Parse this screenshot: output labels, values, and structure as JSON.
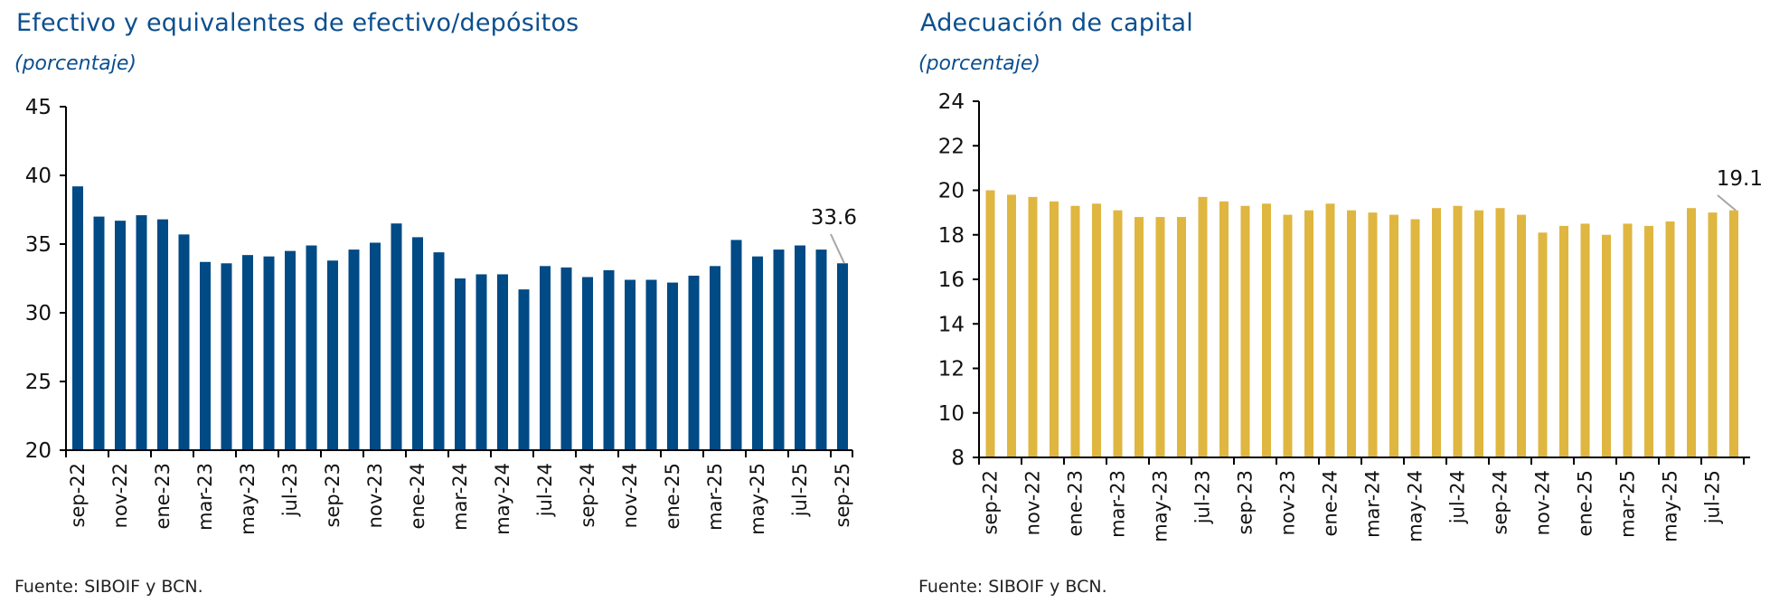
{
  "charts": [
    {
      "title": "Efectivo y equivalentes de efectivo/depósitos",
      "subtitle": "(porcentaje)",
      "source": "Fuente: SIBOIF y BCN."
    },
    {
      "title": "Adecuación de capital",
      "subtitle": "(porcentaje)",
      "source": "Fuente: SIBOIF y BCN."
    }
  ],
  "chart_data": [
    {
      "type": "bar",
      "title": "Efectivo y equivalentes de efectivo/depósitos",
      "subtitle": "(porcentaje)",
      "xlabel": "",
      "ylabel": "",
      "ylim": [
        20,
        45
      ],
      "yticks": [
        20,
        25,
        30,
        35,
        40,
        45
      ],
      "grid": false,
      "color": "#004a85",
      "categories": [
        "sep-22",
        "oct-22",
        "nov-22",
        "dic-22",
        "ene-23",
        "feb-23",
        "mar-23",
        "abr-23",
        "may-23",
        "jun-23",
        "jul-23",
        "ago-23",
        "sep-23",
        "oct-23",
        "nov-23",
        "dic-23",
        "ene-24",
        "feb-24",
        "mar-24",
        "abr-24",
        "may-24",
        "jun-24",
        "jul-24",
        "ago-24",
        "sep-24",
        "oct-24",
        "nov-24",
        "dic-24",
        "ene-25",
        "feb-25",
        "mar-25",
        "abr-25",
        "may-25",
        "jun-25",
        "jul-25",
        "ago-25",
        "sep-25"
      ],
      "tick_labels": [
        "sep-22",
        "nov-22",
        "ene-23",
        "mar-23",
        "may-23",
        "jul-23",
        "sep-23",
        "nov-23",
        "ene-24",
        "mar-24",
        "may-24",
        "jul-24",
        "sep-24",
        "nov-24",
        "ene-25",
        "mar-25",
        "may-25",
        "jul-25",
        "sep-25"
      ],
      "values": [
        39.2,
        37.0,
        36.7,
        37.1,
        36.8,
        35.7,
        33.7,
        33.6,
        34.2,
        34.1,
        34.5,
        34.9,
        33.8,
        34.6,
        35.1,
        36.5,
        35.5,
        34.4,
        32.5,
        32.8,
        32.8,
        31.7,
        33.4,
        33.3,
        32.6,
        33.1,
        32.4,
        32.4,
        32.2,
        32.7,
        33.4,
        35.3,
        34.1,
        34.6,
        34.9,
        34.6,
        33.6
      ],
      "annotation": {
        "text": "33.6",
        "category": "sep-25"
      },
      "source": "Fuente: SIBOIF y BCN."
    },
    {
      "type": "bar",
      "title": "Adecuación de capital",
      "subtitle": "(porcentaje)",
      "xlabel": "",
      "ylabel": "",
      "ylim": [
        8,
        24
      ],
      "yticks": [
        8,
        10,
        12,
        14,
        16,
        18,
        20,
        22,
        24
      ],
      "grid": false,
      "color": "#dfb640",
      "categories": [
        "sep-22",
        "oct-22",
        "nov-22",
        "dic-22",
        "ene-23",
        "feb-23",
        "mar-23",
        "abr-23",
        "may-23",
        "jun-23",
        "jul-23",
        "ago-23",
        "sep-23",
        "oct-23",
        "nov-23",
        "dic-23",
        "ene-24",
        "feb-24",
        "mar-24",
        "abr-24",
        "may-24",
        "jun-24",
        "jul-24",
        "ago-24",
        "sep-24",
        "oct-24",
        "nov-24",
        "dic-24",
        "ene-25",
        "feb-25",
        "mar-25",
        "abr-25",
        "may-25",
        "jun-25",
        "jul-25",
        "ago-25"
      ],
      "tick_labels": [
        "sep-22",
        "nov-22",
        "ene-23",
        "mar-23",
        "may-23",
        "jul-23",
        "sep-23",
        "nov-23",
        "ene-24",
        "mar-24",
        "may-24",
        "jul-24",
        "sep-24",
        "nov-24",
        "ene-25",
        "mar-25",
        "may-25",
        "jul-25"
      ],
      "values": [
        20.0,
        19.8,
        19.7,
        19.5,
        19.3,
        19.4,
        19.1,
        18.8,
        18.8,
        18.8,
        19.7,
        19.5,
        19.3,
        19.4,
        18.9,
        19.1,
        19.4,
        19.1,
        19.0,
        18.9,
        18.7,
        19.2,
        19.3,
        19.1,
        19.2,
        18.9,
        18.1,
        18.4,
        18.5,
        18.0,
        18.5,
        18.4,
        18.6,
        19.2,
        19.0,
        19.1
      ],
      "annotation": {
        "text": "19.1",
        "category": "ago-25"
      },
      "source": "Fuente: SIBOIF y BCN."
    }
  ]
}
